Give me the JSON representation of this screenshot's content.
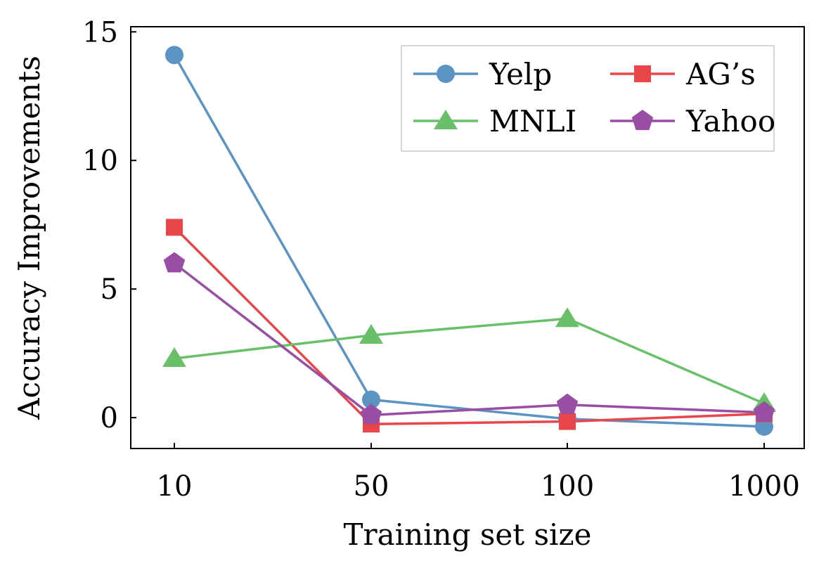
{
  "chart_data": {
    "type": "line",
    "title": "",
    "xlabel": "Training set size",
    "ylabel": "Accuracy Improvements",
    "categories": [
      "10",
      "50",
      "100",
      "1000"
    ],
    "ylim": [
      -1.2,
      15.2
    ],
    "yticks": [
      0,
      5,
      10,
      15
    ],
    "grid": false,
    "legend_position": "top-right",
    "series": [
      {
        "name": "Yelp",
        "values": [
          14.1,
          0.7,
          -0.05,
          -0.35
        ],
        "color": "#5b93c2",
        "marker": "circle"
      },
      {
        "name": "AG’s",
        "values": [
          7.4,
          -0.25,
          -0.15,
          0.15
        ],
        "color": "#e8464a",
        "marker": "square"
      },
      {
        "name": "MNLI",
        "values": [
          2.3,
          3.2,
          3.85,
          0.55
        ],
        "color": "#6abf69",
        "marker": "triangle"
      },
      {
        "name": "Yahoo",
        "values": [
          6.0,
          0.1,
          0.5,
          0.2
        ],
        "color": "#984ea3",
        "marker": "pentagon"
      }
    ]
  }
}
